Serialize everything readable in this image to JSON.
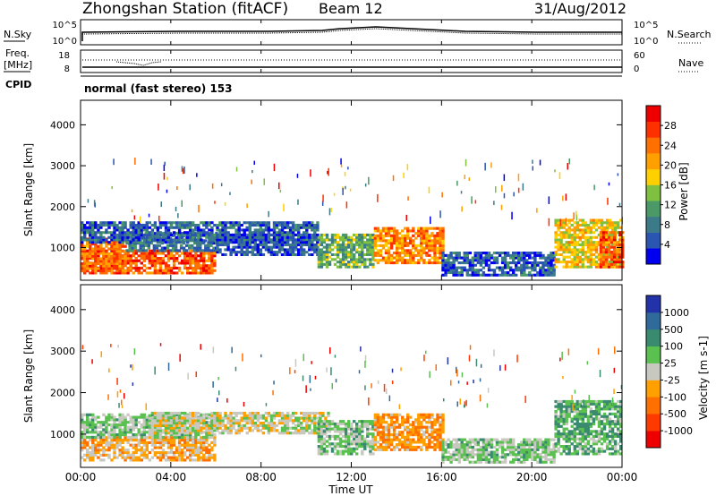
{
  "header": {
    "station": "Zhongshan Station (fitACF)",
    "beam": "Beam 12",
    "date": "31/Aug/2012"
  },
  "param_panels": {
    "nsky_label": [
      "N.Sky"
    ],
    "nsky_ticks": [
      "10^5",
      "10^0"
    ],
    "nsearch_label": "N.Search",
    "nsearch_ticks": [
      "10^5",
      "10^0"
    ],
    "freq_label": [
      "Freq.",
      "[MHz]"
    ],
    "freq_ticks": [
      "18",
      "8"
    ],
    "nave_label": "Nave",
    "nave_ticks": [
      "60",
      "0"
    ],
    "cpid_label": "CPID",
    "cpid_text": "normal (fast stereo) 153"
  },
  "chart_data": [
    {
      "type": "heatmap",
      "panel": "power",
      "ylabel": "Slant Range [km]",
      "ylim": [
        200,
        4600
      ],
      "yticks": [
        1000,
        2000,
        3000,
        4000
      ],
      "xlim": [
        0,
        24
      ],
      "colorbar": {
        "label": "Power [dB]",
        "ticks": [
          4,
          8,
          12,
          16,
          20,
          24,
          28
        ],
        "colors": [
          "#0000ee",
          "#2a55b0",
          "#3c7a8a",
          "#4a9966",
          "#7fc040",
          "#ffd000",
          "#ffa000",
          "#ff7000",
          "#ff3000",
          "#ee0000"
        ]
      },
      "regions": [
        {
          "t": [
            0.0,
            6.0
          ],
          "r": [
            350,
            900
          ],
          "v": 26
        },
        {
          "t": [
            0.0,
            2.0
          ],
          "r": [
            400,
            1200
          ],
          "v": 24
        },
        {
          "t": [
            2.0,
            6.0
          ],
          "r": [
            900,
            1350
          ],
          "v": 8
        },
        {
          "t": [
            0.0,
            10.5
          ],
          "r": [
            1100,
            1600
          ],
          "v": 6
        },
        {
          "t": [
            6.0,
            10.5
          ],
          "r": [
            800,
            1300
          ],
          "v": 5
        },
        {
          "t": [
            10.5,
            13.0
          ],
          "r": [
            500,
            1300
          ],
          "v": 12
        },
        {
          "t": [
            13.0,
            16.0
          ],
          "r": [
            600,
            1500
          ],
          "v": 22
        },
        {
          "t": [
            16.0,
            21.0
          ],
          "r": [
            300,
            900
          ],
          "v": 6
        },
        {
          "t": [
            21.0,
            24.0
          ],
          "r": [
            500,
            1700
          ],
          "v": 18
        },
        {
          "t": [
            23.0,
            24.0
          ],
          "r": [
            500,
            1400
          ],
          "v": 26
        }
      ]
    },
    {
      "type": "heatmap",
      "panel": "velocity",
      "ylabel": "Slant Range [km]",
      "ylim": [
        200,
        4600
      ],
      "yticks": [
        1000,
        2000,
        3000,
        4000
      ],
      "xlim": [
        0,
        24
      ],
      "colorbar": {
        "label": "Velocity [m s-1]",
        "ticks": [
          1000,
          500,
          100,
          25,
          -25,
          -100,
          -500,
          -1000
        ],
        "colors": [
          "#2233aa",
          "#2f6a9a",
          "#3a8a70",
          "#5ac050",
          "#c8c8c0",
          "#ffa000",
          "#ff7000",
          "#ff3a00",
          "#ee0000"
        ]
      },
      "regions": [
        {
          "t": [
            0.0,
            6.0
          ],
          "r": [
            350,
            900
          ],
          "v": -200
        },
        {
          "t": [
            0.0,
            6.0
          ],
          "r": [
            900,
            1500
          ],
          "v": 150
        },
        {
          "t": [
            3.0,
            11.0
          ],
          "r": [
            1000,
            1500
          ],
          "v": 0
        },
        {
          "t": [
            10.5,
            13.0
          ],
          "r": [
            500,
            1300
          ],
          "v": 200
        },
        {
          "t": [
            13.0,
            16.0
          ],
          "r": [
            600,
            1500
          ],
          "v": -300
        },
        {
          "t": [
            16.0,
            21.0
          ],
          "r": [
            300,
            900
          ],
          "v": 150
        },
        {
          "t": [
            21.0,
            24.0
          ],
          "r": [
            500,
            1800
          ],
          "v": 300
        }
      ]
    }
  ],
  "x_axis": {
    "ticks": [
      "00:00",
      "04:00",
      "08:00",
      "12:00",
      "16:00",
      "20:00",
      "00:00"
    ],
    "tick_hours": [
      0,
      4,
      8,
      12,
      16,
      20,
      24
    ],
    "label": "Time UT"
  }
}
